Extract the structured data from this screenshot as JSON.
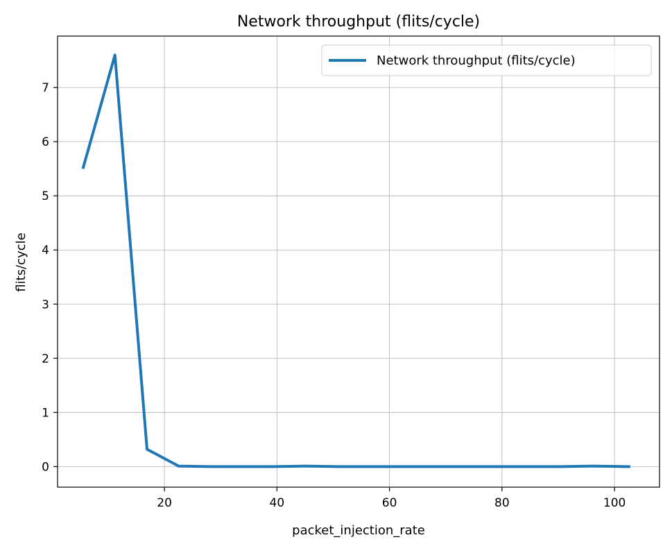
{
  "chart_data": {
    "type": "line",
    "title": "Network throughput (flits/cycle)",
    "xlabel": "packet_injection_rate",
    "ylabel": "flits/cycle",
    "xlim": [
      1,
      108
    ],
    "ylim": [
      -0.38,
      7.95
    ],
    "xticks": [
      20,
      40,
      60,
      80,
      100
    ],
    "yticks": [
      0,
      1,
      2,
      3,
      4,
      5,
      6,
      7
    ],
    "grid": true,
    "legend_position": "top-right",
    "series": [
      {
        "name": "Network throughput (flits/cycle)",
        "color": "#1f77b4",
        "x": [
          5.5,
          11.2,
          16.9,
          22.5,
          28.2,
          33.8,
          39.5,
          45.2,
          50.8,
          56.5,
          62.1,
          67.8,
          73.5,
          79.1,
          84.8,
          90.4,
          96.1,
          101.8,
          102.8
        ],
        "y": [
          5.5,
          7.6,
          0.32,
          0.01,
          0.0,
          0.0,
          0.0,
          0.01,
          0.0,
          0.0,
          0.0,
          0.0,
          0.0,
          0.0,
          0.0,
          0.0,
          0.01,
          0.0,
          0.0
        ]
      }
    ]
  }
}
